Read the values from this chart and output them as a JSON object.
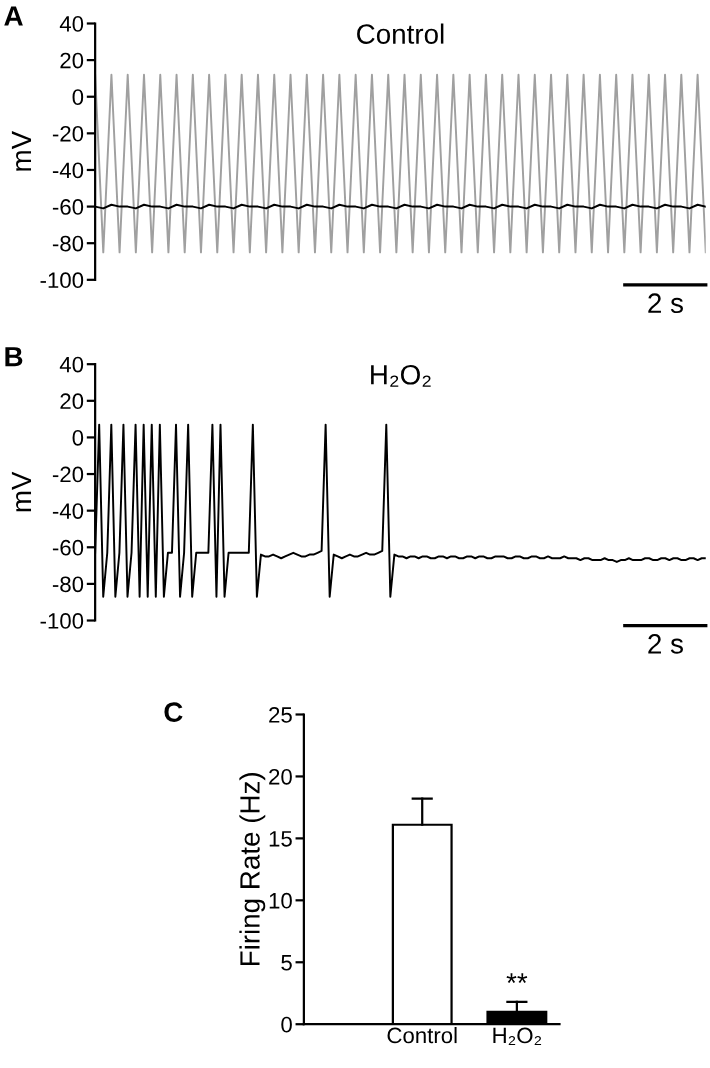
{
  "chart_data": [
    {
      "type": "line",
      "title": "Control",
      "ylabel": "mV",
      "categories": [
        null,
        null,
        null,
        null,
        null,
        null,
        null,
        null,
        null,
        null,
        null,
        null,
        null,
        null,
        null,
        null,
        null,
        null,
        null,
        null,
        null,
        null,
        null,
        null,
        null,
        null,
        null,
        null,
        null,
        null,
        null,
        null,
        null,
        null,
        null,
        null,
        null,
        null,
        null,
        null,
        null,
        null,
        null,
        null,
        null,
        null,
        null,
        null,
        null,
        null,
        null,
        null,
        null,
        null,
        null,
        null,
        null,
        null,
        null,
        null,
        null,
        null,
        null,
        null,
        null,
        null,
        null,
        null,
        null,
        null,
        null,
        null,
        null,
        null,
        null,
        null
      ],
      "ylim": [
        -100,
        40
      ],
      "yticks": [
        -100,
        -80,
        -60,
        -40,
        -20,
        0,
        20,
        40
      ],
      "annotations": [
        "A",
        "2 s"
      ],
      "series": [
        {
          "color": "#a0a0a0",
          "values": [
            12,
            -85,
            12,
            -85,
            12,
            -85,
            12,
            -85,
            12,
            -85,
            12,
            -85,
            12,
            -85,
            12,
            -85,
            12,
            -85,
            12,
            -85,
            12,
            -85,
            12,
            -85,
            12,
            -85,
            12,
            -85,
            12,
            -85,
            12,
            -85,
            12,
            -85,
            12,
            -85,
            12,
            -85,
            12,
            -85,
            12,
            -85,
            12,
            -85,
            12,
            -85,
            12,
            -85,
            12,
            -85,
            12,
            -85,
            12,
            -85,
            12,
            -85,
            12,
            -85,
            12,
            -85,
            12,
            -85,
            12,
            -85,
            12,
            -85,
            12,
            -85,
            12,
            -85,
            12,
            -85,
            12,
            -85,
            12,
            -85
          ]
        },
        {
          "color": "#000000",
          "values": [
            -60,
            -61,
            -59,
            -60,
            -60,
            -61,
            -59,
            -60,
            -60,
            -61,
            -59,
            -60,
            -60,
            -61,
            -59,
            -60,
            -60,
            -61,
            -59,
            -60,
            -60,
            -61,
            -59,
            -60,
            -60,
            -61,
            -59,
            -60,
            -60,
            -61,
            -59,
            -60,
            -60,
            -61,
            -59,
            -60,
            -60,
            -61,
            -59,
            -60,
            -60,
            -61,
            -59,
            -60,
            -60,
            -61,
            -59,
            -60,
            -60,
            -61,
            -59,
            -60,
            -60,
            -61,
            -59,
            -60,
            -60,
            -61,
            -59,
            -60,
            -60,
            -61,
            -59,
            -60,
            -60,
            -61,
            -59,
            -60,
            -60,
            -61,
            -59,
            -60,
            -60,
            -61,
            -59,
            -60
          ]
        }
      ]
    },
    {
      "type": "line",
      "title": "H₂O₂",
      "ylabel": "mV",
      "categories": [
        null,
        null,
        null,
        null,
        null,
        null,
        null,
        null,
        null,
        null,
        null,
        null,
        null,
        null,
        null,
        null,
        null,
        null,
        null,
        null,
        null,
        null,
        null,
        null,
        null,
        null,
        null,
        null,
        null,
        null,
        null,
        null,
        null,
        null,
        null,
        null,
        null,
        null,
        null,
        null,
        null,
        null,
        null,
        null,
        null,
        null,
        null,
        null,
        null,
        null,
        null,
        null,
        null,
        null,
        null,
        null,
        null,
        null,
        null,
        null,
        null,
        null,
        null,
        null,
        null,
        null,
        null,
        null,
        null,
        null,
        null,
        null,
        null,
        null,
        null,
        null,
        null,
        null,
        null,
        null,
        null,
        null,
        null,
        null,
        null,
        null,
        null,
        null,
        null,
        null,
        null,
        null,
        null,
        null,
        null,
        null,
        null,
        null,
        null,
        null,
        null,
        null,
        null,
        null,
        null,
        null,
        null,
        null,
        null,
        null,
        null,
        null,
        null,
        null,
        null,
        null,
        null,
        null,
        null,
        null,
        null,
        null,
        null,
        null,
        null,
        null,
        null,
        null,
        null,
        null,
        null,
        null,
        null,
        null,
        null,
        null,
        null,
        null,
        null,
        null,
        null,
        null,
        null,
        null,
        null,
        null,
        null,
        null,
        null,
        null,
        null,
        null
      ],
      "ylim": [
        -100,
        40
      ],
      "yticks": [
        -100,
        -80,
        -60,
        -40,
        -20,
        0,
        20,
        40
      ],
      "annotations": [
        "B",
        "2 s"
      ],
      "series": [
        {
          "color": "#000000",
          "values": [
            -63,
            7,
            -87,
            -63,
            7,
            -87,
            -63,
            7,
            -87,
            -63,
            7,
            -87,
            7,
            -87,
            7,
            -87,
            7,
            -87,
            -63,
            -63,
            7,
            -87,
            -63,
            7,
            -87,
            -63,
            -63,
            -63,
            -63,
            7,
            -87,
            7,
            -87,
            -63,
            -63,
            -63,
            -63,
            -63,
            -63,
            7,
            -87,
            -64,
            -65,
            -65,
            -64,
            -65,
            -66,
            -65,
            -64,
            -63,
            -64,
            -65,
            -65,
            -64,
            -64,
            -63,
            -62,
            7,
            -87,
            -64,
            -65,
            -66,
            -65,
            -64,
            -65,
            -65,
            -64,
            -63,
            -64,
            -64,
            -63,
            -62,
            7,
            -87,
            -64,
            -65,
            -65,
            -66,
            -65,
            -65,
            -66,
            -65,
            -65,
            -66,
            -66,
            -65,
            -65,
            -66,
            -65,
            -65,
            -66,
            -66,
            -65,
            -65,
            -66,
            -65,
            -65,
            -66,
            -66,
            -65,
            -65,
            -65,
            -66,
            -66,
            -65,
            -65,
            -66,
            -66,
            -65,
            -65,
            -66,
            -66,
            -65,
            -66,
            -66,
            -66,
            -65,
            -66,
            -66,
            -66,
            -67,
            -66,
            -66,
            -67,
            -67,
            -67,
            -66,
            -67,
            -67,
            -68,
            -67,
            -67,
            -66,
            -67,
            -67,
            -67,
            -66,
            -66,
            -67,
            -67,
            -66,
            -66,
            -67,
            -66,
            -66,
            -67,
            -67,
            -66,
            -66,
            -67,
            -66,
            -66
          ]
        }
      ]
    },
    {
      "type": "bar",
      "ylabel": "Firing Rate (Hz)",
      "categories": [
        "Control",
        "H₂O₂"
      ],
      "values": [
        16.1,
        1.0
      ],
      "errors": [
        [
          16.1,
          18.2
        ],
        [
          1.0,
          1.8
        ]
      ],
      "colors": [
        "#ffffff",
        "#000000"
      ],
      "ylim": [
        0,
        25
      ],
      "yticks": [
        0,
        5,
        10,
        15,
        20,
        25
      ],
      "annotations": [
        "C",
        "**"
      ]
    }
  ]
}
